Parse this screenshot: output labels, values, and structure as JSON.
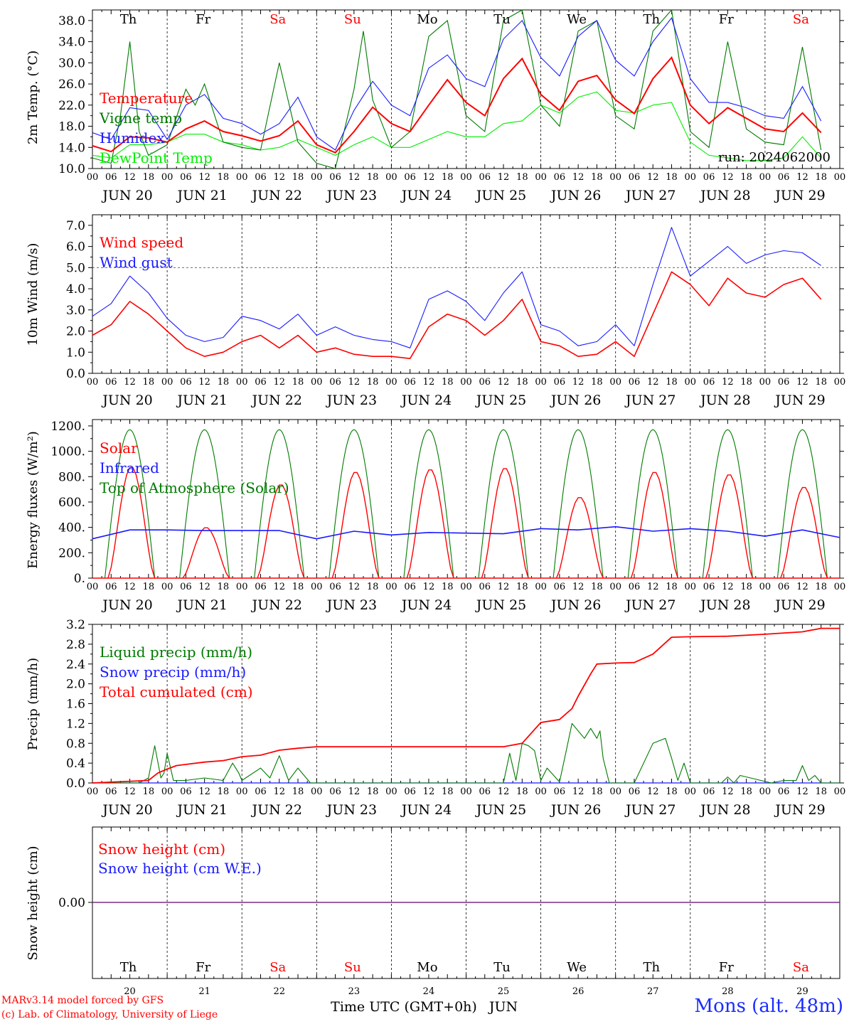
{
  "day_names": [
    "Th",
    "Fr",
    "Sa",
    "Su",
    "Mo",
    "Tu",
    "We",
    "Th",
    "Fr",
    "Sa"
  ],
  "day_dates": [
    "JUN 20",
    "JUN 21",
    "JUN 22",
    "JUN 23",
    "JUN 24",
    "JUN 25",
    "JUN 26",
    "JUN 27",
    "JUN 28",
    "JUN 29"
  ],
  "day_numbers": [
    "20",
    "21",
    "22",
    "23",
    "24",
    "25",
    "26",
    "27",
    "28",
    "29"
  ],
  "hour_ticks": [
    "00",
    "06",
    "12",
    "18"
  ],
  "x_end_label": "00",
  "colors": {
    "weekday": "#000000",
    "weekend": "#ff0000",
    "red": "#ff0000",
    "green": "#007a00",
    "blue": "#1a1aff",
    "lightgreen": "#00ee00",
    "purple": "#7a2a8a"
  },
  "run_label": "run: 2024062000",
  "xlabel": "Time UTC (GMT+0h)",
  "xlabel_month": "JUN",
  "credit_line1": "MARv3.14 model forced by GFS",
  "credit_line2": "(c) Lab. of Climatology, University of Liege",
  "station": "Mons (alt. 48m)",
  "chart_data": [
    {
      "type": "line",
      "ylabel": "2m Temp. (°C)",
      "ylim": [
        10,
        40
      ],
      "ytick_labels": [
        "10.0",
        "14.0",
        "18.0",
        "22.0",
        "26.0",
        "30.0",
        "34.0",
        "38.0"
      ],
      "ytick_values": [
        10,
        14,
        18,
        22,
        26,
        30,
        34,
        38
      ],
      "x_unit": "hours since 2024-06-20 00 UTC",
      "series": [
        {
          "name": "Temperature",
          "color": "#ff0000",
          "x": [
            0,
            6,
            12,
            18,
            24,
            30,
            36,
            42,
            48,
            54,
            60,
            66,
            72,
            78,
            84,
            90,
            96,
            102,
            108,
            114,
            120,
            126,
            132,
            138,
            144,
            150,
            156,
            162,
            168,
            174,
            180,
            186,
            192,
            198,
            204,
            210,
            216,
            222,
            228,
            234
          ],
          "y": [
            14.3,
            13.2,
            16.0,
            15.8,
            15.0,
            17.5,
            19.0,
            17.0,
            16.2,
            15.2,
            16.2,
            19.0,
            14.5,
            13.0,
            17.0,
            21.6,
            18.5,
            17.0,
            22.0,
            26.8,
            22.5,
            20.0,
            27.0,
            30.8,
            24.0,
            21.0,
            26.5,
            27.6,
            23.0,
            20.4,
            27.0,
            31.0,
            22.0,
            18.5,
            21.5,
            19.5,
            17.5,
            17.0,
            20.5,
            16.8
          ]
        },
        {
          "name": "Vigne temp",
          "color": "#007a00",
          "x": [
            0,
            6,
            9,
            12,
            15,
            18,
            24,
            30,
            33,
            36,
            42,
            48,
            54,
            60,
            66,
            72,
            78,
            84,
            87,
            90,
            96,
            102,
            108,
            114,
            120,
            126,
            132,
            138,
            144,
            150,
            156,
            162,
            168,
            174,
            180,
            186,
            192,
            198,
            204,
            210,
            216,
            222,
            228,
            234
          ],
          "y": [
            12.0,
            11.0,
            20.0,
            34.0,
            17.0,
            12.5,
            14.5,
            25.0,
            22.0,
            26.0,
            15.0,
            14.0,
            13.5,
            30.0,
            15.0,
            11.0,
            10.0,
            25.0,
            36.0,
            23.0,
            14.0,
            17.0,
            35.0,
            38.0,
            20.0,
            17.0,
            38.0,
            40.0,
            22.0,
            18.0,
            36.0,
            38.0,
            20.0,
            17.5,
            36.0,
            40.0,
            17.0,
            14.0,
            34.0,
            17.5,
            15.0,
            14.5,
            33.0,
            13.5
          ]
        },
        {
          "name": "Humidex",
          "color": "#1a1aff",
          "x": [
            0,
            6,
            12,
            18,
            24,
            30,
            36,
            42,
            48,
            54,
            60,
            66,
            72,
            78,
            84,
            90,
            96,
            102,
            108,
            114,
            120,
            126,
            132,
            138,
            144,
            150,
            156,
            162,
            168,
            174,
            180,
            186,
            192,
            198,
            204,
            210,
            216,
            222,
            228,
            234
          ],
          "y": [
            16.8,
            15.5,
            21.5,
            21.0,
            15.5,
            22.0,
            24.0,
            19.5,
            18.5,
            16.5,
            18.5,
            23.5,
            16.0,
            13.5,
            21.0,
            26.5,
            22.0,
            20.0,
            29.0,
            31.5,
            27.0,
            25.5,
            34.5,
            38.0,
            31.0,
            27.5,
            35.0,
            38.0,
            30.5,
            27.5,
            34.0,
            38.5,
            27.0,
            22.5,
            22.5,
            21.5,
            20.0,
            19.5,
            25.5,
            19.0
          ]
        },
        {
          "name": "DewPoint Temp",
          "color": "#00ee00",
          "x": [
            0,
            6,
            12,
            18,
            24,
            30,
            36,
            42,
            48,
            54,
            60,
            66,
            72,
            78,
            84,
            90,
            96,
            102,
            108,
            114,
            120,
            126,
            132,
            138,
            144,
            150,
            156,
            162,
            168,
            174,
            180,
            186,
            192,
            198,
            204,
            210,
            216,
            222,
            228,
            234
          ],
          "y": [
            12.5,
            12.0,
            14.5,
            14.5,
            15.0,
            16.5,
            16.5,
            15.0,
            14.5,
            13.5,
            14.0,
            15.5,
            14.0,
            12.5,
            14.5,
            16.0,
            14.0,
            14.0,
            15.5,
            17.0,
            16.0,
            16.0,
            18.5,
            19.0,
            22.0,
            20.5,
            23.5,
            24.5,
            21.0,
            20.5,
            22.0,
            22.5,
            15.0,
            12.5,
            12.0,
            11.5,
            11.5,
            12.0,
            16.0,
            12.0
          ]
        }
      ]
    },
    {
      "type": "line",
      "ylabel": "10m Wind (m/s)",
      "ylim": [
        0,
        7.5
      ],
      "ytick_labels": [
        "0.0",
        "1.0",
        "2.0",
        "3.0",
        "4.0",
        "5.0",
        "6.0",
        "7.0"
      ],
      "ytick_values": [
        0,
        1,
        2,
        3,
        4,
        5,
        6,
        7
      ],
      "reference_line": 5,
      "series": [
        {
          "name": "Wind speed",
          "color": "#ff0000",
          "x": [
            0,
            6,
            12,
            18,
            24,
            30,
            36,
            42,
            48,
            54,
            60,
            66,
            72,
            78,
            84,
            90,
            96,
            102,
            108,
            114,
            120,
            126,
            132,
            138,
            144,
            150,
            156,
            162,
            168,
            174,
            180,
            186,
            192,
            198,
            204,
            210,
            216,
            222,
            228,
            234
          ],
          "y": [
            1.8,
            2.3,
            3.4,
            2.8,
            2.0,
            1.2,
            0.8,
            1.0,
            1.5,
            1.8,
            1.2,
            1.8,
            1.0,
            1.2,
            0.9,
            0.8,
            0.8,
            0.7,
            2.2,
            2.8,
            2.5,
            1.8,
            2.5,
            3.5,
            1.5,
            1.3,
            0.8,
            0.9,
            1.5,
            0.8,
            2.8,
            4.8,
            4.2,
            3.2,
            4.5,
            3.8,
            3.6,
            4.2,
            4.5,
            3.5
          ]
        },
        {
          "name": "Wind gust",
          "color": "#1a1aff",
          "x": [
            0,
            6,
            12,
            18,
            24,
            30,
            36,
            42,
            48,
            54,
            60,
            66,
            72,
            78,
            84,
            90,
            96,
            102,
            108,
            114,
            120,
            126,
            132,
            138,
            144,
            150,
            156,
            162,
            168,
            174,
            180,
            186,
            192,
            198,
            204,
            210,
            216,
            222,
            228,
            234
          ],
          "y": [
            2.7,
            3.3,
            4.6,
            3.8,
            2.6,
            1.8,
            1.5,
            1.7,
            2.7,
            2.5,
            2.1,
            2.8,
            1.8,
            2.2,
            1.8,
            1.6,
            1.5,
            1.2,
            3.5,
            3.9,
            3.4,
            2.5,
            3.8,
            4.8,
            2.3,
            2.0,
            1.3,
            1.5,
            2.3,
            1.3,
            4.2,
            6.9,
            4.6,
            5.3,
            6.0,
            5.2,
            5.6,
            5.8,
            5.7,
            5.1
          ]
        }
      ]
    },
    {
      "type": "line",
      "ylabel": "Energy fluxes (W/m²)",
      "ylim": [
        0,
        1250
      ],
      "ytick_labels": [
        "0.",
        "200.",
        "400.",
        "600.",
        "800.",
        "1000.",
        "1200."
      ],
      "ytick_values": [
        0,
        200,
        400,
        600,
        800,
        1000,
        1200
      ],
      "series": [
        {
          "name": "Solar",
          "color": "#ff0000",
          "peaks": [
            {
              "day": 0,
              "value": 880
            },
            {
              "day": 1,
              "value": 400
            },
            {
              "day": 2,
              "value": 740
            },
            {
              "day": 3,
              "value": 840
            },
            {
              "day": 4,
              "value": 860
            },
            {
              "day": 5,
              "value": 870
            },
            {
              "day": 6,
              "value": 640
            },
            {
              "day": 7,
              "value": 840
            },
            {
              "day": 8,
              "value": 820
            },
            {
              "day": 9,
              "value": 720
            }
          ]
        },
        {
          "name": "Infrared",
          "color": "#1a1aff",
          "x": [
            0,
            12,
            24,
            36,
            48,
            60,
            72,
            84,
            96,
            108,
            120,
            132,
            144,
            156,
            168,
            180,
            192,
            204,
            216,
            228,
            240
          ],
          "y": [
            310,
            380,
            380,
            375,
            375,
            375,
            310,
            370,
            340,
            360,
            355,
            350,
            390,
            380,
            405,
            370,
            390,
            370,
            330,
            380,
            320
          ]
        },
        {
          "name": "Top of Atmosphere (Solar)",
          "color": "#007a00",
          "daily_peak": 1170,
          "sunrise_hour": 4,
          "sunset_hour": 20
        }
      ]
    },
    {
      "type": "line",
      "ylabel": "Precip (mm/h)",
      "ylim": [
        0,
        3.2
      ],
      "ytick_labels": [
        "0.0",
        "0.4",
        "0.8",
        "1.2",
        "1.6",
        "2.0",
        "2.4",
        "2.8",
        "3.2"
      ],
      "ytick_values": [
        0,
        0.4,
        0.8,
        1.2,
        1.6,
        2.0,
        2.4,
        2.8,
        3.2
      ],
      "series": [
        {
          "name": "Liquid precip (mm/h)",
          "color": "#007a00",
          "x": [
            0,
            15,
            18,
            20,
            22,
            23,
            24,
            26,
            30,
            36,
            42,
            45,
            47,
            48,
            54,
            57,
            60,
            63,
            66,
            70,
            72,
            100,
            132,
            134,
            136,
            138,
            140,
            142,
            144,
            146,
            150,
            152,
            154,
            158,
            160,
            162,
            163,
            164,
            166,
            168,
            174,
            180,
            182,
            184,
            186,
            188,
            190,
            192,
            202,
            204,
            206,
            208,
            218,
            222,
            226,
            228,
            230,
            232,
            234,
            240
          ],
          "y": [
            0,
            0,
            0.1,
            0.75,
            0.1,
            0.2,
            0.6,
            0.05,
            0.05,
            0.1,
            0.05,
            0.4,
            0.2,
            0.05,
            0.3,
            0.1,
            0.55,
            0.05,
            0.3,
            0,
            0,
            0,
            0,
            0.6,
            0.05,
            0.8,
            0.75,
            0.65,
            0.05,
            0.3,
            0.02,
            0.6,
            1.2,
            0.9,
            1.1,
            0.9,
            1.05,
            0.5,
            0,
            0,
            0,
            0.8,
            0.85,
            0.9,
            0.5,
            0.05,
            0.4,
            0,
            0,
            0.12,
            0,
            0.15,
            0,
            0.05,
            0.05,
            0.35,
            0.05,
            0.15,
            0,
            0
          ]
        },
        {
          "name": "Snow precip (mm/h)",
          "color": "#1a1aff",
          "x": [
            0,
            240
          ],
          "y": [
            0,
            0
          ]
        },
        {
          "name": "Total cumulated (cm)",
          "color": "#ff0000",
          "x": [
            0,
            18,
            21,
            24,
            27,
            36,
            42,
            48,
            54,
            60,
            66,
            72,
            96,
            120,
            132,
            138,
            144,
            150,
            154,
            156,
            160,
            162,
            168,
            174,
            180,
            186,
            192,
            204,
            216,
            228,
            234,
            240
          ],
          "y": [
            0,
            0.05,
            0.2,
            0.28,
            0.35,
            0.42,
            0.45,
            0.53,
            0.56,
            0.66,
            0.7,
            0.73,
            0.73,
            0.73,
            0.73,
            0.8,
            1.22,
            1.28,
            1.5,
            1.75,
            2.2,
            2.4,
            2.42,
            2.43,
            2.6,
            2.94,
            2.95,
            2.96,
            3.0,
            3.05,
            3.12,
            3.12
          ]
        }
      ]
    },
    {
      "type": "line",
      "ylabel": "Snow height (cm)",
      "ytick_labels": [
        "0.00"
      ],
      "ytick_values": [
        0
      ],
      "series": [
        {
          "name": "Snow height (cm)",
          "color": "#ff0000",
          "x": [
            0,
            240
          ],
          "y": [
            0,
            0
          ]
        },
        {
          "name": "Snow height (cm W.E.)",
          "color": "#1a1aff",
          "x": [
            0,
            240
          ],
          "y": [
            0,
            0
          ]
        }
      ]
    }
  ]
}
